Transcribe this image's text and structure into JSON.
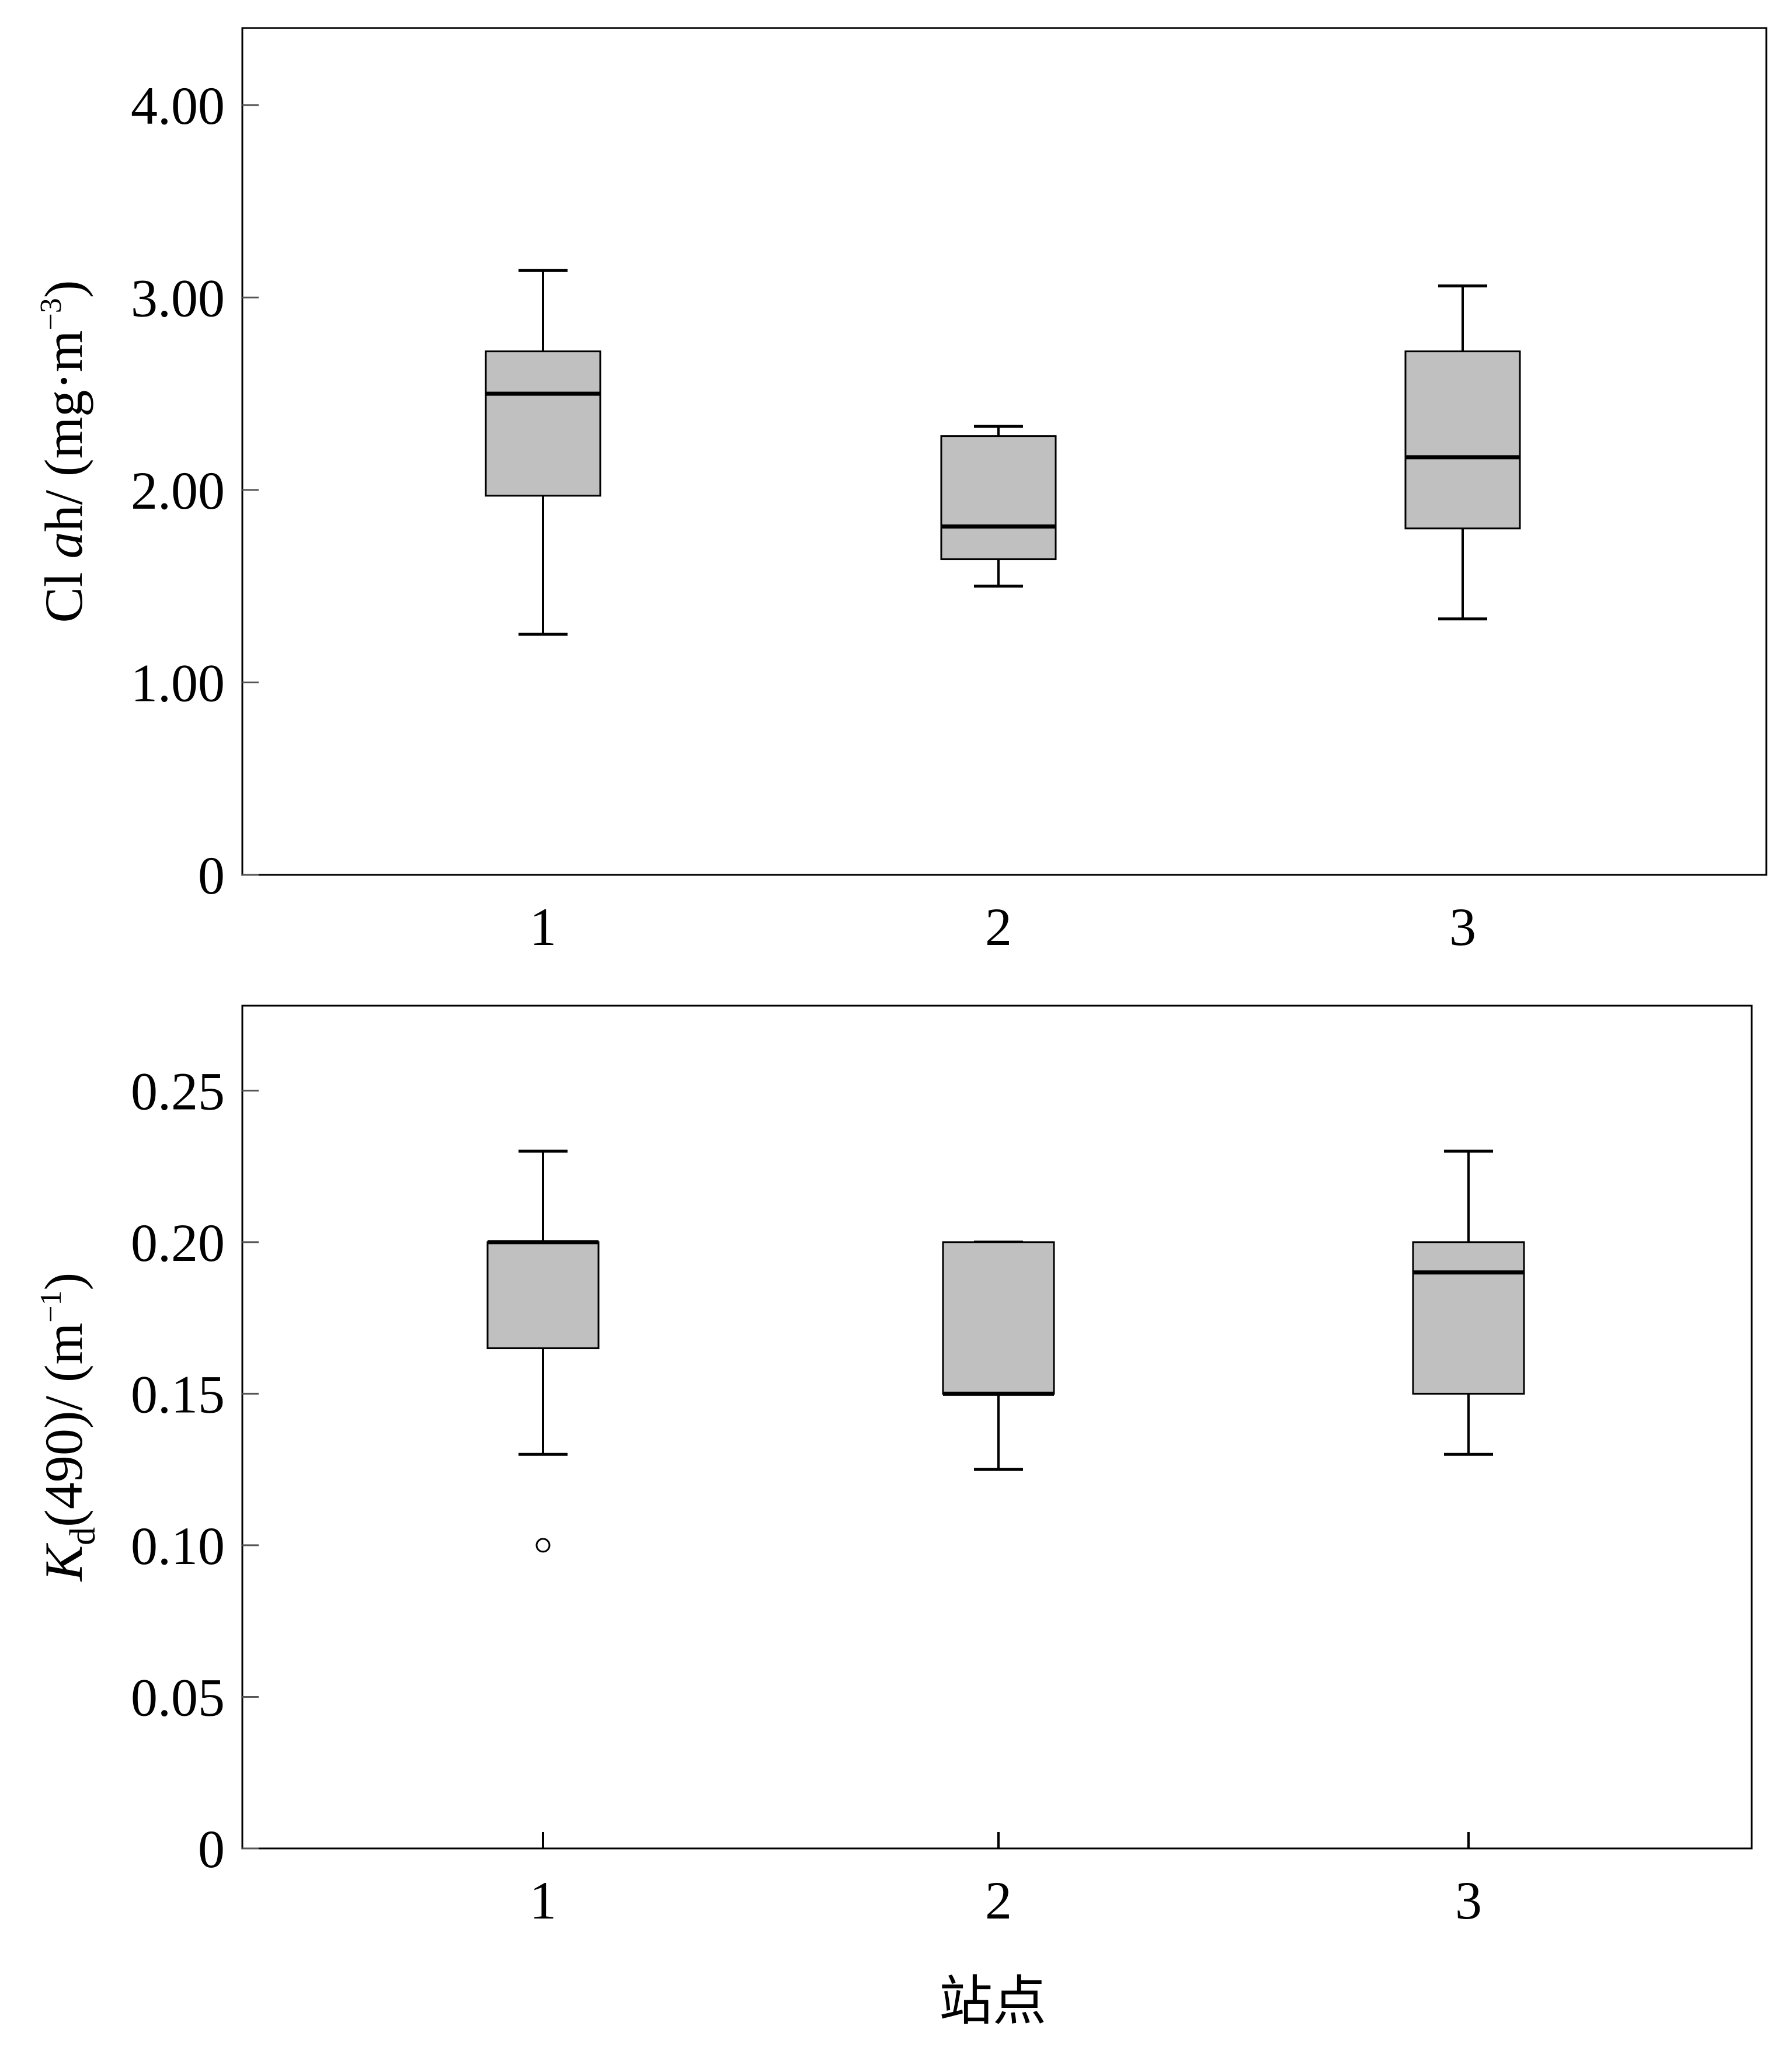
{
  "chart_data": [
    {
      "type": "box",
      "title": "",
      "ylabel": {
        "text": "Cl ",
        "italic": "a",
        "rest": "h/ (mg·m",
        "sup": "−3",
        "close": ")"
      },
      "xlabel": "",
      "ylim": [
        0,
        4.4
      ],
      "yticks": [
        0,
        1.0,
        2.0,
        3.0,
        4.0
      ],
      "ytick_labels": [
        "0",
        "1.00",
        "2.00",
        "3.00",
        "4.00"
      ],
      "categories": [
        "1",
        "2",
        "3"
      ],
      "boxes": [
        {
          "whisker_low": 1.25,
          "q1": 1.97,
          "median": 2.5,
          "q3": 2.72,
          "whisker_high": 3.14,
          "outliers": []
        },
        {
          "whisker_low": 1.5,
          "q1": 1.64,
          "median": 1.81,
          "q3": 2.28,
          "whisker_high": 2.33,
          "outliers": []
        },
        {
          "whisker_low": 1.33,
          "q1": 1.8,
          "median": 2.17,
          "q3": 2.72,
          "whisker_high": 3.06,
          "outliers": []
        }
      ],
      "box_color": "#c0c0c0",
      "grid": false
    },
    {
      "type": "box",
      "title": "",
      "ylabel": {
        "italic": "K",
        "sub": "d",
        "rest": "(490)/ (m",
        "sup": "−1",
        "close": ")"
      },
      "xlabel": "站点",
      "ylim": [
        0,
        0.278
      ],
      "yticks": [
        0,
        0.05,
        0.1,
        0.15,
        0.2,
        0.25
      ],
      "ytick_labels": [
        "0",
        "0.05",
        "0.10",
        "0.15",
        "0.20",
        "0.25"
      ],
      "categories": [
        "1",
        "2",
        "3"
      ],
      "boxes": [
        {
          "whisker_low": 0.13,
          "q1": 0.165,
          "median": 0.2,
          "q3": 0.2,
          "whisker_high": 0.23,
          "outliers": [
            0.1
          ]
        },
        {
          "whisker_low": 0.125,
          "q1": 0.15,
          "median": 0.15,
          "q3": 0.2,
          "whisker_high": 0.2,
          "outliers": []
        },
        {
          "whisker_low": 0.13,
          "q1": 0.15,
          "median": 0.19,
          "q3": 0.2,
          "whisker_high": 0.23,
          "outliers": []
        }
      ],
      "box_color": "#c0c0c0",
      "grid": false
    }
  ]
}
